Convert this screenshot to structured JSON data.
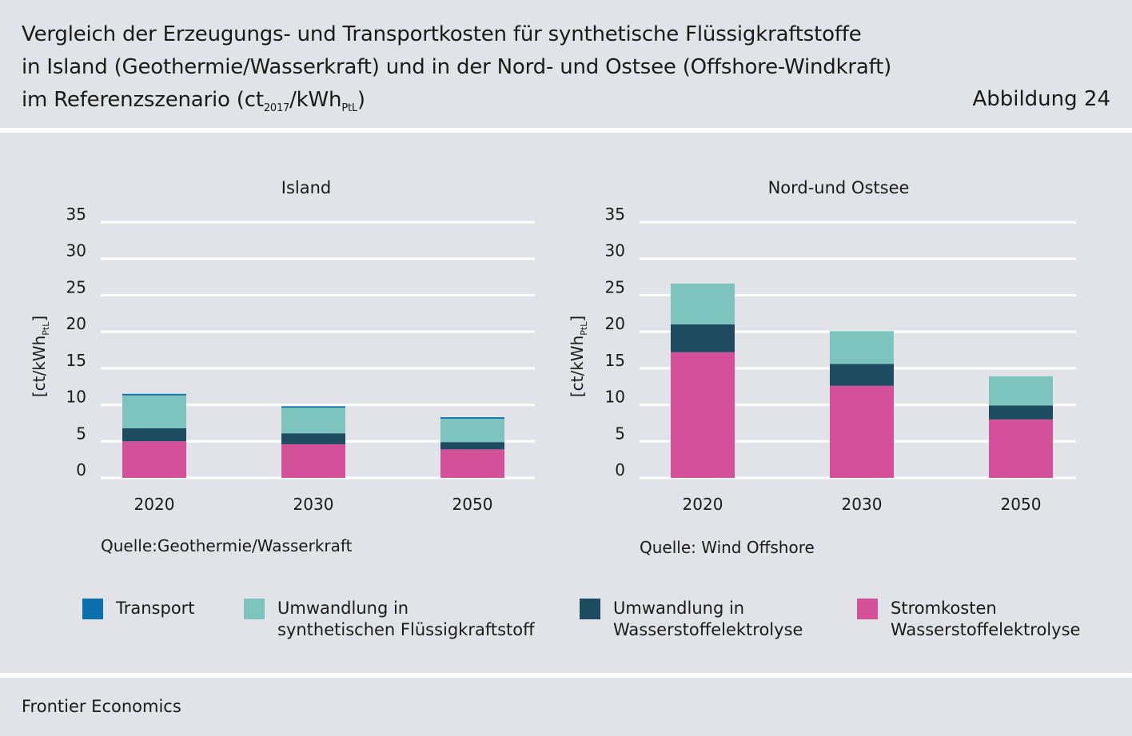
{
  "header": {
    "title_line1": "Vergleich der Erzeugungs- und Transportkosten für synthetische Flüssigkraftstoffe",
    "title_line2": "in Island (Geothermie/Wasserkraft) und in der Nord- und Ostsee (Offshore-Windkraft)",
    "title_line3_main": "im Referenzszenario (ct",
    "title_line3_sub1": "2017",
    "title_line3_mid": "/kWh",
    "title_line3_sub2": "PtL",
    "title_line3_end": ")",
    "figure_label": "Abbildung 24"
  },
  "colors": {
    "Transport": "#0b6fad",
    "Umwandlung in synthetischen Flüssigkraftstoff": "#7cc4bd",
    "Umwandlung in Wasserstoffelektrolyse": "#1d4b60",
    "Stromkosten Wasserstoffelektrolyse": "#d4519a"
  },
  "chart_data": [
    {
      "type": "bar",
      "stacked": true,
      "title": "Island",
      "ylabel": "[ct/kWh",
      "ylabel_sub": "PtL",
      "ylabel_end": "]",
      "ylim": [
        0,
        35
      ],
      "yticks": [
        0,
        5,
        10,
        15,
        20,
        25,
        30,
        35
      ],
      "categories": [
        "2020",
        "2030",
        "2050"
      ],
      "series": [
        {
          "name": "Stromkosten Wasserstoffelektrolyse",
          "values": [
            5.0,
            4.6,
            3.9
          ]
        },
        {
          "name": "Umwandlung in Wasserstoffelektrolyse",
          "values": [
            1.8,
            1.5,
            1.0
          ]
        },
        {
          "name": "Umwandlung in synthetischen Flüssigkraftstoff",
          "values": [
            4.5,
            3.5,
            3.2
          ]
        },
        {
          "name": "Transport",
          "values": [
            0.2,
            0.2,
            0.2
          ]
        }
      ],
      "source_note": "Quelle:Geothermie/Wasserkraft"
    },
    {
      "type": "bar",
      "stacked": true,
      "title": "Nord-und Ostsee",
      "ylabel": "[ct/kWh",
      "ylabel_sub": "PtL",
      "ylabel_end": "]",
      "ylim": [
        0,
        35
      ],
      "yticks": [
        0,
        5,
        10,
        15,
        20,
        25,
        30,
        35
      ],
      "categories": [
        "2020",
        "2030",
        "2050"
      ],
      "series": [
        {
          "name": "Stromkosten Wasserstoffelektrolyse",
          "values": [
            17.2,
            12.6,
            8.0
          ]
        },
        {
          "name": "Umwandlung in Wasserstoffelektrolyse",
          "values": [
            3.8,
            3.0,
            1.9
          ]
        },
        {
          "name": "Umwandlung in synthetischen Flüssigkraftstoff",
          "values": [
            5.6,
            4.5,
            4.0
          ]
        },
        {
          "name": "Transport",
          "values": [
            0,
            0,
            0
          ]
        }
      ],
      "source_note": "Quelle: Wind Offshore"
    }
  ],
  "legend": [
    {
      "key": "Transport",
      "line1": "Transport",
      "line2": ""
    },
    {
      "key": "Umwandlung in synthetischen Flüssigkraftstoff",
      "line1": "Umwandlung in",
      "line2": "synthetischen Flüssigkraftstoff"
    },
    {
      "key": "Umwandlung in Wasserstoffelektrolyse",
      "line1": "Umwandlung in",
      "line2": "Wasserstoffelektrolyse"
    },
    {
      "key": "Stromkosten Wasserstoffelektrolyse",
      "line1": "Stromkosten",
      "line2": "Wasserstoffelektrolyse"
    }
  ],
  "footer": {
    "source": "Frontier Economics"
  }
}
